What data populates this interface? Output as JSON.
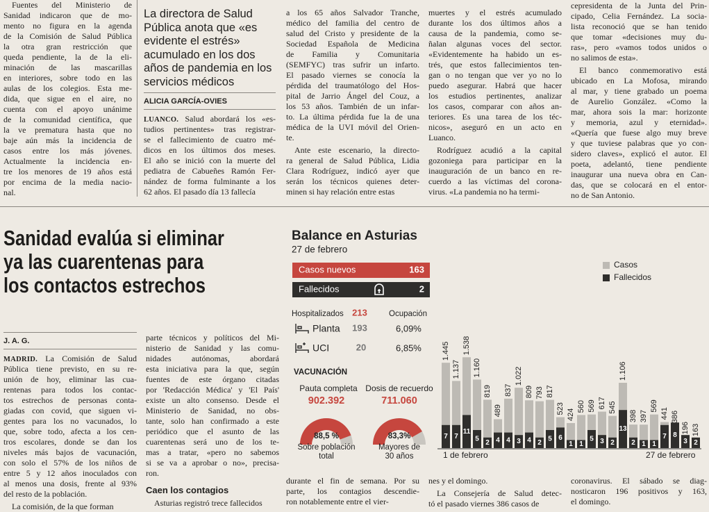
{
  "upper": [
    [
      {
        "p": [
          "Fuentes del Ministerio de",
          "Sanidad indicaron que de mo-",
          "mento no figura en la agenda",
          "de la Comisión de Salud Pública",
          "la otra gran restricción que",
          "queda pendiente, la de la eli-",
          "minación de las mascarillas",
          "en interiores, sobre todo en las",
          "aulas de los colegios. Esta me-",
          "dida, que sigue en el aire, no",
          "cuenta con el apoyo unánime",
          "de la comunidad científica, que",
          "la ve prematura hasta que no",
          "baje aún más la incidencia de",
          "casos entre los más jóvenes.",
          "Actualmente la incidencia en-",
          "tre los menores de 19 años está",
          "por encima de la media nacio-",
          "nal."
        ]
      }
    ],
    [
      {
        "deck": [
          "La directora de Salud",
          "Pública anota que «es",
          "evidente el estrés»",
          "acumulado en los dos",
          "años de pandemia en los",
          "servicios médicos"
        ]
      },
      {
        "byline": "ALICIA GARCÍA-OVIES"
      },
      {
        "dateline": "LUANCO.",
        "p": [
          "Salud abordará los «es-",
          "tudios pertinentes» tras registrar-",
          "se el fallecimiento de cuatro mé-",
          "dicos en los últimos dos meses.",
          "El año se inició con la muerte del",
          "pediatra de Cabueñes Ramón Fer-",
          "nández de forma fulminante a los",
          "62 años. El pasado día 13 fallecía"
        ]
      }
    ],
    [
      {
        "p": [
          "a los 65 años Salvador Tranche,",
          "médico del familia del centro de",
          "salud del Cristo y presidente de la",
          "Sociedad Española de Medicina",
          "de Familia y Comunitaria",
          "(SEMFYC) tras sufrir un infarto.",
          "El pasado viernes se conocía la",
          "pérdida del traumatólogo del Hos-",
          "pital de Jarrio Ángel del Couz, a",
          "los 53 años. También de un infar-",
          "to. La última pérdida fue la de una",
          "médica de la UVI móvil del Orien-",
          "te."
        ]
      },
      {
        "p": [
          "Ante este escenario, la directo-",
          "ra general de Salud Pública, Lidia",
          "Clara Rodríguez, indicó ayer que",
          "serán los técnicos quienes deter-",
          "minen si hay relación entre estas"
        ]
      }
    ],
    [
      {
        "p": [
          "muertes y el estrés acumulado",
          "durante los dos últimos años a",
          "causa de la pandemia, como se-",
          "ñalan algunas voces del sector.",
          "«Evidentemente ha habido un es-",
          "trés, que estos fallecimientos ten-",
          "gan o no tengan que ver yo no lo",
          "puedo asegurar. Habrá que hacer",
          "los estudios pertinentes, analizar",
          "los casos, comparar con años an-",
          "teriores. Es una tarea de los téc-",
          "nicos», aseguró en un acto en",
          "Luanco."
        ]
      },
      {
        "p": [
          "Rodríguez acudió a la capital",
          "gozoniega para participar en la",
          "inauguración de un banco en re-",
          "cuerdo a las víctimas del corona-",
          "virus. «La pandemia no ha termi-"
        ]
      }
    ],
    [
      {
        "p": [
          "cepresidenta de la Junta del Prin-",
          "cipado, Celia Fernández. La socia-",
          "lista reconoció que se han tenido",
          "que tomar «decisiones muy du-",
          "ras», pero «vamos todos unidos o",
          "no salimos de esta»."
        ]
      },
      {
        "p": [
          "El banco conmemorativo está",
          "ubicado en La Mofosa, mirando",
          "al mar, y tiene grabado un poema",
          "de Aurelio González. «Como la",
          "mar, ahora sois la mar: horizonte",
          "y memoria, azul y eternidad».",
          "«Quería que fuese algo muy breve",
          "y que tuviese palabras que yo con-",
          "sidero claves», explicó el autor. El",
          "poeta, adelantó, tiene pendiente",
          "inaugurar una nueva obra en Can-",
          "das, que se colocará en el entor-",
          "no de San Antonio."
        ]
      }
    ]
  ],
  "headline": [
    "Sanidad evalúa si eliminar",
    "ya las cuarentenas para",
    "los contactos estrechos"
  ],
  "lower": [
    [
      {
        "byline": "J. A. G."
      },
      {
        "dateline": "MADRID.",
        "p": [
          "La Comisión de Salud",
          "Pública tiene previsto, en su re-",
          "unión de hoy, eliminar las cua-",
          "rentenas para todos los contac-",
          "tos estrechos de personas conta-",
          "giadas con covid, que siguen vi-",
          "gentes para los no vacunados, lo",
          "que, sobre todo, afecta a los cen-",
          "tros escolares, donde se dan los",
          "niveles más bajos de vacunación,",
          "con solo el 57% de los niños de",
          "entre 5 y 12 años inoculados con",
          "al menos una dosis, frente al 93%",
          "del resto de la población."
        ]
      },
      {
        "p": [
          "La comisión, de la que forman"
        ]
      }
    ],
    [
      {
        "p": [
          "parte técnicos y políticos del Mi-",
          "nisterio de Sanidad y las comu-",
          "nidades autónomas, abordará",
          "esta iniciativa para la que, según",
          "fuentes de este órgano citadas",
          "por 'Redacción Médica' y 'El País'",
          "existe un alto consenso. Desde el",
          "Ministerio de Sanidad, no obs-",
          "tante, solo han confirmado a este",
          "periódico que el asunto de las",
          "cuarentenas será uno de los te-",
          "mas a tratar, «pero no sabemos",
          "si se va a aprobar o no», precisa-",
          "ron."
        ]
      },
      {
        "h": "Caen los contagios"
      },
      {
        "p": [
          "Asturias registró trece fallecidos"
        ]
      }
    ],
    [
      {
        "p": [
          "durante el fin de semana. Por su",
          "parte, los contagios descendie-",
          "ron notablemente entre el vier-"
        ]
      }
    ],
    [
      {
        "p": [
          "nes y el domingo."
        ]
      },
      {
        "p": [
          "La Consejería de Salud detec-",
          "tó el pasado viernes 386 casos de"
        ]
      }
    ],
    [
      {
        "p": [
          "coronavirus. El sábado se diag-",
          "nosticaron 196 positivos y 163,",
          "el domingo."
        ]
      }
    ]
  ],
  "infographic": {
    "title": "Balance en Asturias",
    "date": "27 de febrero",
    "new_cases": {
      "label": "Casos nuevos",
      "value": "163"
    },
    "deaths": {
      "label": "Fallecidos",
      "value": "2"
    },
    "hospital": {
      "label": "Hospitalizados",
      "total": "213",
      "occupancy_label": "Ocupación",
      "rows": [
        {
          "label": "Planta",
          "value": "193",
          "occupancy": "6,09%"
        },
        {
          "label": "UCI",
          "value": "20",
          "occupancy": "6,85%"
        }
      ]
    },
    "vaccination": {
      "title": "VACUNACIÓN",
      "gauges": [
        {
          "label": "Pauta completa",
          "count": "902.392",
          "value": 88.5,
          "value_label": "88,5 %",
          "caption": [
            "Sobre población",
            "total"
          ]
        },
        {
          "label": "Dosis de recuerdo",
          "count": "711.060",
          "value": 83.3,
          "value_label": "83,3%",
          "caption": [
            "Mayores de",
            "30 años"
          ]
        }
      ]
    },
    "chart": {
      "type": "bar",
      "x_labels": [
        "1 de febrero",
        "27 de febrero"
      ],
      "series": [
        {
          "name": "Casos",
          "color": "#bdbab4",
          "values": [
            1445,
            1137,
            1538,
            1160,
            819,
            489,
            837,
            1022,
            809,
            793,
            817,
            523,
            424,
            560,
            569,
            617,
            545,
            1106,
            398,
            397,
            569,
            441,
            386,
            196,
            163
          ],
          "value_labels": [
            "1.445",
            "1.137",
            "1.538",
            "1.160",
            "819",
            "489",
            "837",
            "1.022",
            "809",
            "793",
            "817",
            "523",
            "424",
            "560",
            "569",
            "617",
            "545",
            "1.106",
            "398",
            "397",
            "569",
            "441",
            "386",
            "196",
            "163"
          ]
        },
        {
          "name": "Fallecidos",
          "color": "#2f2e2c",
          "values": [
            7,
            7,
            11,
            5,
            2,
            4,
            4,
            3,
            4,
            2,
            5,
            6,
            1,
            1,
            5,
            3,
            2,
            13,
            2,
            1,
            1,
            7,
            8,
            3,
            2
          ]
        }
      ]
    }
  }
}
